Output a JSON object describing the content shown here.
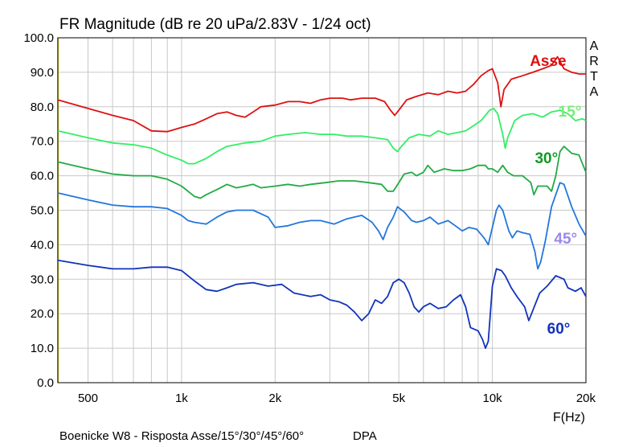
{
  "chart_data": {
    "type": "line",
    "title": "FR Magnitude (dB re 20 uPa/2.83V - 1/24 oct)",
    "xlabel": "F(Hz)",
    "xscale": "log",
    "xlim": [
      400,
      20000
    ],
    "ylim": [
      0,
      100
    ],
    "x_ticks": [
      {
        "v": 500,
        "label": "500"
      },
      {
        "v": 1000,
        "label": "1k"
      },
      {
        "v": 2000,
        "label": "2k"
      },
      {
        "v": 5000,
        "label": "5k"
      },
      {
        "v": 10000,
        "label": "10k"
      },
      {
        "v": 20000,
        "label": "20k"
      }
    ],
    "y_ticks": [
      "0.0",
      "10.0",
      "20.0",
      "30.0",
      "40.0",
      "50.0",
      "60.0",
      "70.0",
      "80.0",
      "90.0",
      "100.0"
    ],
    "grid": true,
    "watermark": [
      "A",
      "R",
      "T",
      "A"
    ],
    "footer": "Boenicke W8 - Risposta Asse/15°/30°/45°/60°",
    "footer_right": "DPA",
    "series": [
      {
        "name": "Asse",
        "color": "#dd1111",
        "label_color": "#dd1111",
        "label_at": [
          13200,
          93.5
        ],
        "points": [
          [
            400,
            82
          ],
          [
            500,
            79.5
          ],
          [
            600,
            77.5
          ],
          [
            700,
            76
          ],
          [
            800,
            73
          ],
          [
            900,
            72.8
          ],
          [
            1000,
            74
          ],
          [
            1100,
            75
          ],
          [
            1200,
            76.5
          ],
          [
            1300,
            78
          ],
          [
            1400,
            78.5
          ],
          [
            1500,
            77.5
          ],
          [
            1600,
            77
          ],
          [
            1700,
            78.5
          ],
          [
            1800,
            80
          ],
          [
            2000,
            80.5
          ],
          [
            2200,
            81.5
          ],
          [
            2400,
            81.5
          ],
          [
            2600,
            81
          ],
          [
            2800,
            82
          ],
          [
            3000,
            82.5
          ],
          [
            3300,
            82.5
          ],
          [
            3500,
            82
          ],
          [
            3800,
            82.5
          ],
          [
            4200,
            82.5
          ],
          [
            4500,
            81.5
          ],
          [
            4700,
            79
          ],
          [
            4850,
            77.5
          ],
          [
            5000,
            79
          ],
          [
            5300,
            82
          ],
          [
            5700,
            83
          ],
          [
            6200,
            84
          ],
          [
            6700,
            83.5
          ],
          [
            7200,
            84.5
          ],
          [
            7700,
            84
          ],
          [
            8200,
            84.5
          ],
          [
            8700,
            86.5
          ],
          [
            9200,
            89
          ],
          [
            9700,
            90.5
          ],
          [
            10000,
            91
          ],
          [
            10400,
            87
          ],
          [
            10650,
            80
          ],
          [
            10900,
            85
          ],
          [
            11500,
            88
          ],
          [
            12500,
            89
          ],
          [
            13500,
            90
          ],
          [
            14500,
            91
          ],
          [
            15500,
            92
          ],
          [
            16200,
            94.5
          ],
          [
            17000,
            91
          ],
          [
            18000,
            90
          ],
          [
            19000,
            89.5
          ],
          [
            20000,
            89.5
          ]
        ]
      },
      {
        "name": "15°",
        "color": "#33ee66",
        "label_color": "#77ee77",
        "label_at": [
          16300,
          78.8
        ],
        "points": [
          [
            400,
            73
          ],
          [
            500,
            71
          ],
          [
            600,
            69.5
          ],
          [
            700,
            69
          ],
          [
            800,
            68
          ],
          [
            900,
            66
          ],
          [
            1000,
            64.5
          ],
          [
            1050,
            63.5
          ],
          [
            1100,
            63.5
          ],
          [
            1200,
            65
          ],
          [
            1300,
            67
          ],
          [
            1400,
            68.5
          ],
          [
            1600,
            69.5
          ],
          [
            1800,
            70
          ],
          [
            2000,
            71.5
          ],
          [
            2200,
            72
          ],
          [
            2500,
            72.5
          ],
          [
            2800,
            72
          ],
          [
            3100,
            72
          ],
          [
            3400,
            71.5
          ],
          [
            3800,
            71.5
          ],
          [
            4200,
            71
          ],
          [
            4600,
            70.5
          ],
          [
            4800,
            68
          ],
          [
            4950,
            67
          ],
          [
            5100,
            68.5
          ],
          [
            5400,
            71
          ],
          [
            5800,
            72
          ],
          [
            6300,
            71.5
          ],
          [
            6700,
            73
          ],
          [
            7200,
            72
          ],
          [
            7700,
            72.5
          ],
          [
            8200,
            73
          ],
          [
            8700,
            74.5
          ],
          [
            9200,
            76
          ],
          [
            9800,
            79
          ],
          [
            10100,
            79.5
          ],
          [
            10400,
            78
          ],
          [
            10800,
            72
          ],
          [
            11000,
            68
          ],
          [
            11200,
            71
          ],
          [
            11800,
            76
          ],
          [
            12500,
            77.5
          ],
          [
            13500,
            78
          ],
          [
            14500,
            77
          ],
          [
            15500,
            78.5
          ],
          [
            16500,
            79
          ],
          [
            17500,
            78
          ],
          [
            18500,
            76
          ],
          [
            19500,
            76.5
          ],
          [
            20000,
            76
          ]
        ]
      },
      {
        "name": "30°",
        "color": "#22aa44",
        "label_color": "#119922",
        "label_at": [
          13700,
          65.3
        ],
        "points": [
          [
            400,
            64
          ],
          [
            500,
            62
          ],
          [
            600,
            60.5
          ],
          [
            700,
            60
          ],
          [
            800,
            60
          ],
          [
            900,
            59
          ],
          [
            1000,
            57
          ],
          [
            1100,
            54
          ],
          [
            1150,
            53.5
          ],
          [
            1200,
            54.5
          ],
          [
            1300,
            56
          ],
          [
            1400,
            57.5
          ],
          [
            1500,
            56.5
          ],
          [
            1600,
            57
          ],
          [
            1700,
            57.5
          ],
          [
            1800,
            56.5
          ],
          [
            2000,
            57
          ],
          [
            2200,
            57.5
          ],
          [
            2400,
            57
          ],
          [
            2600,
            57.5
          ],
          [
            2900,
            58
          ],
          [
            3200,
            58.5
          ],
          [
            3600,
            58.5
          ],
          [
            4000,
            58
          ],
          [
            4400,
            57.5
          ],
          [
            4600,
            55.5
          ],
          [
            4800,
            55.5
          ],
          [
            5000,
            58
          ],
          [
            5200,
            60.5
          ],
          [
            5500,
            61
          ],
          [
            5700,
            60
          ],
          [
            6000,
            61
          ],
          [
            6200,
            63
          ],
          [
            6500,
            61
          ],
          [
            7000,
            62
          ],
          [
            7500,
            61.5
          ],
          [
            8000,
            61.5
          ],
          [
            8500,
            62
          ],
          [
            9000,
            63
          ],
          [
            9500,
            63
          ],
          [
            9700,
            62
          ],
          [
            10000,
            62
          ],
          [
            10400,
            61
          ],
          [
            10800,
            63
          ],
          [
            11200,
            61
          ],
          [
            11700,
            60
          ],
          [
            12500,
            60
          ],
          [
            13300,
            58
          ],
          [
            13600,
            54.5
          ],
          [
            14000,
            57
          ],
          [
            14500,
            57
          ],
          [
            15000,
            57
          ],
          [
            15500,
            55.5
          ],
          [
            16000,
            60
          ],
          [
            16500,
            67
          ],
          [
            17000,
            68.5
          ],
          [
            18000,
            66.5
          ],
          [
            19000,
            66
          ],
          [
            20000,
            61
          ]
        ]
      },
      {
        "name": "45°",
        "color": "#2277dd",
        "label_color": "#9988ee",
        "label_at": [
          15800,
          41.9
        ],
        "points": [
          [
            400,
            55
          ],
          [
            500,
            53
          ],
          [
            600,
            51.5
          ],
          [
            700,
            51
          ],
          [
            800,
            51
          ],
          [
            900,
            50.5
          ],
          [
            1000,
            48.5
          ],
          [
            1050,
            47
          ],
          [
            1100,
            46.5
          ],
          [
            1200,
            46
          ],
          [
            1300,
            48
          ],
          [
            1400,
            49.5
          ],
          [
            1500,
            50
          ],
          [
            1700,
            50
          ],
          [
            1900,
            48
          ],
          [
            2000,
            45
          ],
          [
            2200,
            45.5
          ],
          [
            2400,
            46.5
          ],
          [
            2600,
            47
          ],
          [
            2800,
            47
          ],
          [
            3100,
            46
          ],
          [
            3400,
            47.5
          ],
          [
            3800,
            48.5
          ],
          [
            4100,
            46.5
          ],
          [
            4300,
            44
          ],
          [
            4450,
            41.5
          ],
          [
            4600,
            45
          ],
          [
            4800,
            48
          ],
          [
            4950,
            51
          ],
          [
            5200,
            49.5
          ],
          [
            5500,
            47
          ],
          [
            5700,
            46.5
          ],
          [
            6000,
            47
          ],
          [
            6300,
            48
          ],
          [
            6700,
            46
          ],
          [
            7200,
            47
          ],
          [
            7600,
            45.5
          ],
          [
            8000,
            44
          ],
          [
            8400,
            45
          ],
          [
            8900,
            44.5
          ],
          [
            9400,
            42
          ],
          [
            9700,
            40
          ],
          [
            10000,
            45
          ],
          [
            10300,
            50
          ],
          [
            10500,
            51.5
          ],
          [
            10800,
            50
          ],
          [
            11300,
            44
          ],
          [
            11600,
            42
          ],
          [
            12000,
            44
          ],
          [
            12500,
            43.5
          ],
          [
            13200,
            43
          ],
          [
            13700,
            38
          ],
          [
            14000,
            33
          ],
          [
            14300,
            35
          ],
          [
            14800,
            41
          ],
          [
            15500,
            51
          ],
          [
            16500,
            58
          ],
          [
            17000,
            57.5
          ],
          [
            18000,
            51
          ],
          [
            19000,
            46
          ],
          [
            20000,
            42.5
          ]
        ]
      },
      {
        "name": "60°",
        "color": "#1133bb",
        "label_color": "#1133bb",
        "label_at": [
          15000,
          15.8
        ],
        "points": [
          [
            400,
            35.5
          ],
          [
            500,
            34
          ],
          [
            600,
            33
          ],
          [
            700,
            33
          ],
          [
            800,
            33.5
          ],
          [
            900,
            33.5
          ],
          [
            1000,
            32.5
          ],
          [
            1100,
            29.5
          ],
          [
            1200,
            27
          ],
          [
            1300,
            26.5
          ],
          [
            1400,
            27.5
          ],
          [
            1500,
            28.5
          ],
          [
            1700,
            29
          ],
          [
            1900,
            28
          ],
          [
            2100,
            28.5
          ],
          [
            2300,
            26
          ],
          [
            2600,
            25
          ],
          [
            2800,
            25.5
          ],
          [
            3000,
            24
          ],
          [
            3200,
            23.5
          ],
          [
            3400,
            22.5
          ],
          [
            3600,
            20.5
          ],
          [
            3800,
            18
          ],
          [
            4000,
            20
          ],
          [
            4200,
            24
          ],
          [
            4400,
            23
          ],
          [
            4600,
            25
          ],
          [
            4800,
            29
          ],
          [
            5000,
            30
          ],
          [
            5200,
            29
          ],
          [
            5400,
            26
          ],
          [
            5600,
            22
          ],
          [
            5800,
            20.5
          ],
          [
            6000,
            22
          ],
          [
            6300,
            23
          ],
          [
            6700,
            21.5
          ],
          [
            7100,
            22
          ],
          [
            7500,
            24
          ],
          [
            7900,
            25.5
          ],
          [
            8200,
            22
          ],
          [
            8500,
            16
          ],
          [
            9000,
            15
          ],
          [
            9300,
            12.5
          ],
          [
            9500,
            10
          ],
          [
            9700,
            12
          ],
          [
            10000,
            28
          ],
          [
            10300,
            33
          ],
          [
            10700,
            32.5
          ],
          [
            11000,
            31
          ],
          [
            11500,
            27.5
          ],
          [
            12000,
            25
          ],
          [
            12700,
            22
          ],
          [
            13100,
            18
          ],
          [
            13500,
            21
          ],
          [
            14200,
            26
          ],
          [
            15000,
            28
          ],
          [
            16000,
            31
          ],
          [
            17000,
            30
          ],
          [
            17500,
            27.5
          ],
          [
            18500,
            26.5
          ],
          [
            19300,
            27.5
          ],
          [
            20000,
            25
          ]
        ]
      }
    ]
  }
}
